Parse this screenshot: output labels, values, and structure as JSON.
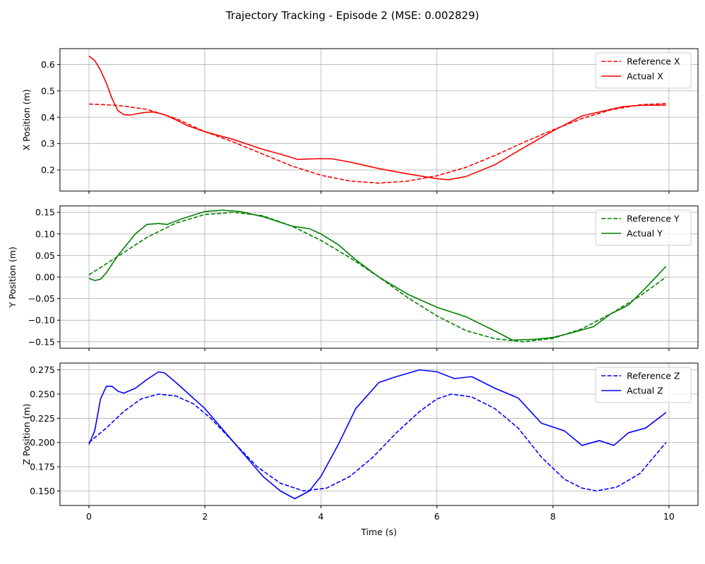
{
  "figure": {
    "suptitle": "Trajectory Tracking - Episode 2 (MSE: 0.002829)"
  },
  "chart_data": [
    {
      "type": "line",
      "title": "",
      "xlabel": "",
      "ylabel": "X Position (m)",
      "xlim": [
        -0.5,
        10.5
      ],
      "ylim": [
        0.12,
        0.66
      ],
      "xticks": [
        0,
        2,
        4,
        6,
        8,
        10
      ],
      "yticks": [
        0.2,
        0.3,
        0.4,
        0.5,
        0.6
      ],
      "ytick_labels": [
        "0.2",
        "0.3",
        "0.4",
        "0.5",
        "0.6"
      ],
      "grid": true,
      "legend": "top-right",
      "color": "#ff0000",
      "series": [
        {
          "name": "Reference X",
          "style": "dashed",
          "points": [
            [
              0,
              0.45
            ],
            [
              0.5,
              0.445
            ],
            [
              1,
              0.43
            ],
            [
              1.5,
              0.395
            ],
            [
              2,
              0.345
            ],
            [
              2.5,
              0.305
            ],
            [
              3,
              0.26
            ],
            [
              3.5,
              0.215
            ],
            [
              4,
              0.18
            ],
            [
              4.5,
              0.158
            ],
            [
              5,
              0.15
            ],
            [
              5.5,
              0.158
            ],
            [
              6,
              0.178
            ],
            [
              6.5,
              0.21
            ],
            [
              7,
              0.255
            ],
            [
              7.5,
              0.305
            ],
            [
              8,
              0.352
            ],
            [
              8.5,
              0.395
            ],
            [
              9,
              0.428
            ],
            [
              9.5,
              0.447
            ],
            [
              9.95,
              0.452
            ]
          ]
        },
        {
          "name": "Actual X",
          "style": "solid",
          "points": [
            [
              0,
              0.632
            ],
            [
              0.1,
              0.615
            ],
            [
              0.2,
              0.578
            ],
            [
              0.3,
              0.53
            ],
            [
              0.4,
              0.47
            ],
            [
              0.5,
              0.425
            ],
            [
              0.6,
              0.41
            ],
            [
              0.7,
              0.408
            ],
            [
              0.8,
              0.412
            ],
            [
              0.95,
              0.418
            ],
            [
              1.1,
              0.42
            ],
            [
              1.3,
              0.41
            ],
            [
              1.5,
              0.39
            ],
            [
              1.7,
              0.368
            ],
            [
              2,
              0.345
            ],
            [
              2.5,
              0.315
            ],
            [
              3,
              0.278
            ],
            [
              3.3,
              0.26
            ],
            [
              3.6,
              0.24
            ],
            [
              4,
              0.243
            ],
            [
              4.2,
              0.242
            ],
            [
              4.5,
              0.23
            ],
            [
              5,
              0.205
            ],
            [
              5.5,
              0.185
            ],
            [
              6,
              0.167
            ],
            [
              6.2,
              0.163
            ],
            [
              6.5,
              0.175
            ],
            [
              7,
              0.22
            ],
            [
              7.5,
              0.285
            ],
            [
              8,
              0.348
            ],
            [
              8.5,
              0.405
            ],
            [
              8.8,
              0.42
            ],
            [
              9,
              0.43
            ],
            [
              9.2,
              0.44
            ],
            [
              9.5,
              0.445
            ],
            [
              9.95,
              0.446
            ]
          ]
        }
      ]
    },
    {
      "type": "line",
      "title": "",
      "xlabel": "",
      "ylabel": "Y Position (m)",
      "xlim": [
        -0.5,
        10.5
      ],
      "ylim": [
        -0.165,
        0.165
      ],
      "xticks": [
        0,
        2,
        4,
        6,
        8,
        10
      ],
      "yticks": [
        -0.15,
        -0.1,
        -0.05,
        0.0,
        0.05,
        0.1,
        0.15
      ],
      "ytick_labels": [
        "−0.15",
        "−0.10",
        "−0.05",
        "0.00",
        "0.05",
        "0.10",
        "0.15"
      ],
      "grid": true,
      "legend": "top-right",
      "color": "#008000",
      "series": [
        {
          "name": "Reference Y",
          "style": "dashed",
          "points": [
            [
              0,
              0.005
            ],
            [
              0.5,
              0.048
            ],
            [
              1,
              0.092
            ],
            [
              1.5,
              0.125
            ],
            [
              2,
              0.145
            ],
            [
              2.5,
              0.15
            ],
            [
              3,
              0.142
            ],
            [
              3.5,
              0.118
            ],
            [
              4,
              0.085
            ],
            [
              4.5,
              0.045
            ],
            [
              5,
              0.0
            ],
            [
              5.5,
              -0.048
            ],
            [
              6,
              -0.09
            ],
            [
              6.5,
              -0.124
            ],
            [
              7,
              -0.143
            ],
            [
              7.5,
              -0.15
            ],
            [
              8,
              -0.142
            ],
            [
              8.5,
              -0.12
            ],
            [
              9,
              -0.085
            ],
            [
              9.5,
              -0.044
            ],
            [
              9.95,
              0.0
            ]
          ]
        },
        {
          "name": "Actual Y",
          "style": "solid",
          "points": [
            [
              0,
              -0.003
            ],
            [
              0.1,
              -0.008
            ],
            [
              0.2,
              -0.005
            ],
            [
              0.3,
              0.01
            ],
            [
              0.5,
              0.05
            ],
            [
              0.8,
              0.1
            ],
            [
              1,
              0.122
            ],
            [
              1.2,
              0.124
            ],
            [
              1.35,
              0.122
            ],
            [
              1.6,
              0.135
            ],
            [
              2,
              0.152
            ],
            [
              2.3,
              0.155
            ],
            [
              2.6,
              0.152
            ],
            [
              3,
              0.14
            ],
            [
              3.5,
              0.118
            ],
            [
              3.8,
              0.112
            ],
            [
              4,
              0.1
            ],
            [
              4.3,
              0.075
            ],
            [
              4.6,
              0.04
            ],
            [
              5,
              0.0
            ],
            [
              5.5,
              -0.04
            ],
            [
              6,
              -0.07
            ],
            [
              6.5,
              -0.092
            ],
            [
              7,
              -0.125
            ],
            [
              7.3,
              -0.146
            ],
            [
              7.7,
              -0.144
            ],
            [
              8,
              -0.14
            ],
            [
              8.3,
              -0.13
            ],
            [
              8.7,
              -0.115
            ],
            [
              9,
              -0.085
            ],
            [
              9.3,
              -0.065
            ],
            [
              9.6,
              -0.025
            ],
            [
              9.95,
              0.025
            ]
          ]
        }
      ]
    },
    {
      "type": "line",
      "title": "",
      "xlabel": "Time (s)",
      "ylabel": "Z Position (m)",
      "xlim": [
        -0.5,
        10.5
      ],
      "ylim": [
        0.135,
        0.282
      ],
      "xticks": [
        0,
        2,
        4,
        6,
        8,
        10
      ],
      "yticks": [
        0.15,
        0.175,
        0.2,
        0.225,
        0.25,
        0.275
      ],
      "ytick_labels": [
        "0.150",
        "0.175",
        "0.200",
        "0.225",
        "0.250",
        "0.275"
      ],
      "grid": true,
      "legend": "top-right",
      "color": "#0000ff",
      "series": [
        {
          "name": "Reference Z",
          "style": "dashed",
          "points": [
            [
              0,
              0.2
            ],
            [
              0.3,
              0.215
            ],
            [
              0.6,
              0.232
            ],
            [
              0.9,
              0.245
            ],
            [
              1.2,
              0.25
            ],
            [
              1.5,
              0.248
            ],
            [
              1.8,
              0.24
            ],
            [
              2.1,
              0.225
            ],
            [
              2.5,
              0.2
            ],
            [
              2.9,
              0.175
            ],
            [
              3.3,
              0.158
            ],
            [
              3.7,
              0.15
            ],
            [
              4.1,
              0.153
            ],
            [
              4.5,
              0.165
            ],
            [
              4.9,
              0.185
            ],
            [
              5.3,
              0.21
            ],
            [
              5.7,
              0.232
            ],
            [
              6,
              0.245
            ],
            [
              6.25,
              0.25
            ],
            [
              6.6,
              0.247
            ],
            [
              7,
              0.235
            ],
            [
              7.4,
              0.215
            ],
            [
              7.8,
              0.185
            ],
            [
              8.2,
              0.162
            ],
            [
              8.5,
              0.153
            ],
            [
              8.75,
              0.15
            ],
            [
              9.1,
              0.154
            ],
            [
              9.5,
              0.168
            ],
            [
              9.95,
              0.2
            ]
          ]
        },
        {
          "name": "Actual Z",
          "style": "solid",
          "points": [
            [
              0,
              0.198
            ],
            [
              0.1,
              0.212
            ],
            [
              0.2,
              0.245
            ],
            [
              0.3,
              0.258
            ],
            [
              0.4,
              0.258
            ],
            [
              0.5,
              0.253
            ],
            [
              0.6,
              0.251
            ],
            [
              0.8,
              0.256
            ],
            [
              1,
              0.265
            ],
            [
              1.2,
              0.273
            ],
            [
              1.3,
              0.272
            ],
            [
              1.5,
              0.262
            ],
            [
              2,
              0.235
            ],
            [
              2.5,
              0.2
            ],
            [
              3,
              0.165
            ],
            [
              3.3,
              0.15
            ],
            [
              3.55,
              0.142
            ],
            [
              3.8,
              0.15
            ],
            [
              4,
              0.165
            ],
            [
              4.3,
              0.198
            ],
            [
              4.6,
              0.235
            ],
            [
              5,
              0.262
            ],
            [
              5.3,
              0.268
            ],
            [
              5.7,
              0.275
            ],
            [
              6,
              0.273
            ],
            [
              6.3,
              0.266
            ],
            [
              6.6,
              0.268
            ],
            [
              7,
              0.256
            ],
            [
              7.4,
              0.246
            ],
            [
              7.8,
              0.22
            ],
            [
              8.2,
              0.212
            ],
            [
              8.5,
              0.197
            ],
            [
              8.8,
              0.202
            ],
            [
              9.05,
              0.197
            ],
            [
              9.3,
              0.21
            ],
            [
              9.6,
              0.215
            ],
            [
              9.95,
              0.231
            ]
          ]
        }
      ]
    }
  ]
}
